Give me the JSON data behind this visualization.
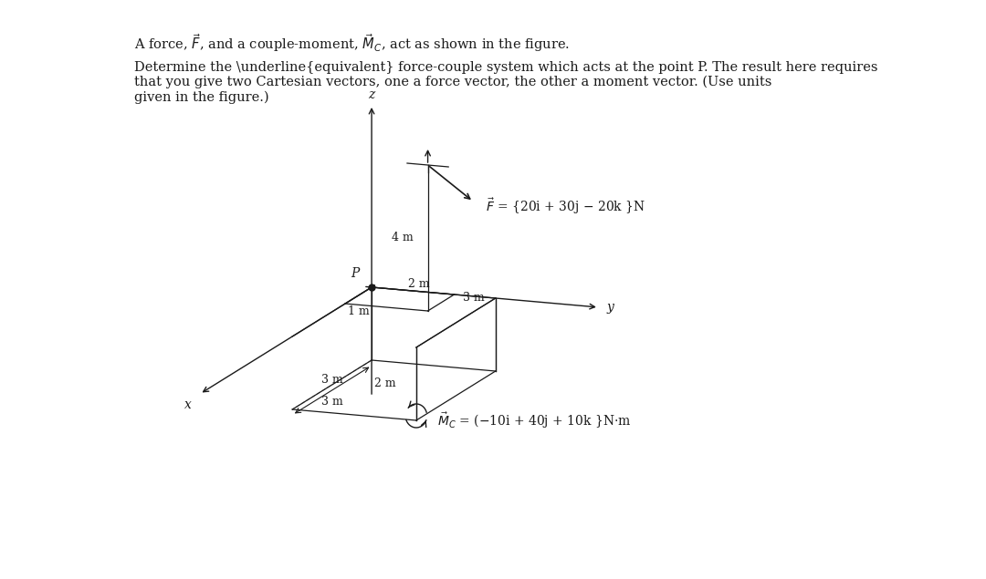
{
  "bg_color": "#ffffff",
  "title_line1": "A force, $\\vec{F}$, and a couple-moment, $\\vec{M}_C$, act as shown in the figure.",
  "title_line2": "Determine the \\underline{equivalent} force-couple system which acts at the point P. The result here requires\nthat you give two Cartesian vectors, one a force vector, the other a moment vector. (Use units\ngiven in the figure.)",
  "F_label": "$\\vec{F}$ = {20i + 30j − 20k }N",
  "Mc_label": "$\\vec{M}_C$ = (−10i + 40j + 10k }N•m",
  "dim_4m": "4 m",
  "dim_2m_upper": "2 m",
  "dim_1m": "1 m",
  "dim_3m_y": "3 m",
  "dim_3m_x": "3 m",
  "dim_2m_lower": "2 m",
  "label_P": "P",
  "label_x": "x",
  "label_y": "y",
  "label_z": "z",
  "line_color": "#1a1a1a",
  "text_color": "#1a1a1a"
}
